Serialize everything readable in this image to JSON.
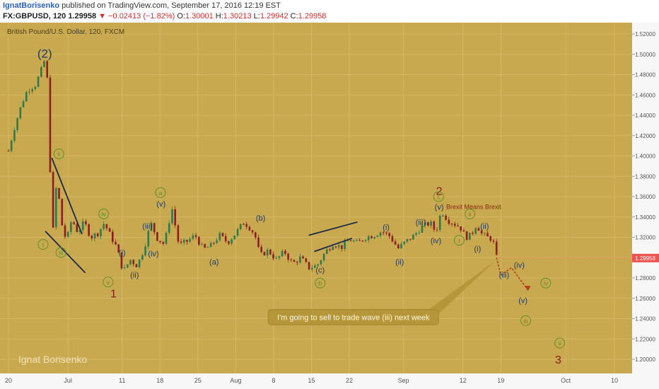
{
  "header": {
    "author": "IgnatBorisenko",
    "published_text": "published on TradingView.com, September 17, 2016 12:19 EST",
    "symbol": "FX:GBPUSD, 120",
    "last_price": "1.29958",
    "change": "−0.02413 (−1.82%)",
    "o_label": "O:",
    "o_value": "1.30001",
    "h_label": "H:",
    "h_value": "1.30213",
    "l_label": "L:",
    "l_value": "1.29942",
    "c_label": "C:",
    "c_value": "1.29958"
  },
  "chart_data": {
    "type": "candlestick",
    "instrument_title": "British Pound/U.S. Dollar, 120, FXCM",
    "watermark": "Ignat Borisenko",
    "ylim": [
      1.19,
      1.53
    ],
    "y_ticks": [
      1.52,
      1.5,
      1.48,
      1.46,
      1.44,
      1.42,
      1.4,
      1.38,
      1.36,
      1.34,
      1.32,
      1.3,
      1.28,
      1.26,
      1.24,
      1.22,
      1.2
    ],
    "y_tick_labels": [
      "1.52000",
      "1.50000",
      "1.48000",
      "1.46000",
      "1.44000",
      "1.42000",
      "1.40000",
      "1.38000",
      "1.36000",
      "1.34000",
      "1.32000",
      "1.30000",
      "1.28000",
      "1.26000",
      "1.24000",
      "1.22000",
      "1.20000"
    ],
    "x_ticks": [
      {
        "label": "20",
        "day": 0
      },
      {
        "label": "Jul",
        "day": 11
      },
      {
        "label": "11",
        "day": 21
      },
      {
        "label": "18",
        "day": 28
      },
      {
        "label": "25",
        "day": 35
      },
      {
        "label": "Aug",
        "day": 42
      },
      {
        "label": "8",
        "day": 49
      },
      {
        "label": "15",
        "day": 56
      },
      {
        "label": "22",
        "day": 63
      },
      {
        "label": "Sep",
        "day": 73
      },
      {
        "label": "12",
        "day": 84
      },
      {
        "label": "19",
        "day": 91
      },
      {
        "label": "Oct",
        "day": 103
      },
      {
        "label": "10",
        "day": 112
      }
    ],
    "current_price": 1.29958,
    "current_price_label": "1.29958",
    "path_points": [
      [
        0,
        1.405
      ],
      [
        1.2,
        1.43
      ],
      [
        2.5,
        1.452
      ],
      [
        3.5,
        1.465
      ],
      [
        5.0,
        1.47
      ],
      [
        6.3,
        1.488
      ],
      [
        6.9,
        1.498
      ],
      [
        7.3,
        1.462
      ],
      [
        7.6,
        1.405
      ],
      [
        7.9,
        1.35
      ],
      [
        8.2,
        1.322
      ],
      [
        8.6,
        1.365
      ],
      [
        9.1,
        1.372
      ],
      [
        9.7,
        1.336
      ],
      [
        10.7,
        1.316
      ],
      [
        11.7,
        1.338
      ],
      [
        12.8,
        1.325
      ],
      [
        14.0,
        1.335
      ],
      [
        15.2,
        1.32
      ],
      [
        16.5,
        1.324
      ],
      [
        17.7,
        1.334
      ],
      [
        18.8,
        1.322
      ],
      [
        20.0,
        1.31
      ],
      [
        21.2,
        1.286
      ],
      [
        22.5,
        1.298
      ],
      [
        23.8,
        1.292
      ],
      [
        25.0,
        1.308
      ],
      [
        26.3,
        1.334
      ],
      [
        27.5,
        1.319
      ],
      [
        28.8,
        1.313
      ],
      [
        30.2,
        1.349
      ],
      [
        31.5,
        1.312
      ],
      [
        33.0,
        1.316
      ],
      [
        34.5,
        1.322
      ],
      [
        36.0,
        1.308
      ],
      [
        37.5,
        1.312
      ],
      [
        39.0,
        1.322
      ],
      [
        40.5,
        1.315
      ],
      [
        42.0,
        1.324
      ],
      [
        43.5,
        1.335
      ],
      [
        44.5,
        1.33
      ],
      [
        45.5,
        1.323
      ],
      [
        46.5,
        1.302
      ],
      [
        48.0,
        1.307
      ],
      [
        49.5,
        1.298
      ],
      [
        51.0,
        1.306
      ],
      [
        52.5,
        1.294
      ],
      [
        54.0,
        1.3
      ],
      [
        55.5,
        1.29
      ],
      [
        57.0,
        1.292
      ],
      [
        58.5,
        1.305
      ],
      [
        60.0,
        1.314
      ],
      [
        61.5,
        1.31
      ],
      [
        63.0,
        1.318
      ],
      [
        64.5,
        1.314
      ],
      [
        66.0,
        1.32
      ],
      [
        67.5,
        1.322
      ],
      [
        69.0,
        1.326
      ],
      [
        70.5,
        1.321
      ],
      [
        72.0,
        1.309
      ],
      [
        73.5,
        1.316
      ],
      [
        75.0,
        1.322
      ],
      [
        76.5,
        1.331
      ],
      [
        78.0,
        1.334
      ],
      [
        79.0,
        1.325
      ],
      [
        80.0,
        1.346
      ],
      [
        81.2,
        1.337
      ],
      [
        82.5,
        1.333
      ],
      [
        83.5,
        1.33
      ],
      [
        84.5,
        1.32
      ],
      [
        85.5,
        1.322
      ],
      [
        86.5,
        1.333
      ],
      [
        87.5,
        1.323
      ],
      [
        88.5,
        1.32
      ],
      [
        89.5,
        1.318
      ],
      [
        90.2,
        1.3
      ]
    ],
    "forecast_path": [
      [
        90.2,
        1.3
      ],
      [
        91.0,
        1.283
      ],
      [
        93.0,
        1.29
      ],
      [
        96.0,
        1.268
      ]
    ],
    "trendlines": [
      {
        "name": "wedge-upper",
        "from": [
          8.0,
          1.398
        ],
        "to": [
          13.6,
          1.323
        ]
      },
      {
        "name": "wedge-lower",
        "from": [
          6.8,
          1.326
        ],
        "to": [
          14.2,
          1.285
        ]
      },
      {
        "name": "flag-upper",
        "from": [
          55.5,
          1.322
        ],
        "to": [
          64.5,
          1.335
        ]
      },
      {
        "name": "flag-lower",
        "from": [
          56.5,
          1.306
        ],
        "to": [
          63.5,
          1.319
        ]
      }
    ],
    "wave_labels": [
      {
        "text": "(2)",
        "x": 6.7,
        "y": 1.501,
        "style": "primary-blue"
      },
      {
        "text": "1",
        "x": 19.4,
        "y": 1.265,
        "style": "major-red"
      },
      {
        "text": "2",
        "x": 79.6,
        "y": 1.366,
        "style": "major-red"
      },
      {
        "text": "3",
        "x": 101.6,
        "y": 1.2,
        "style": "major-red"
      },
      {
        "text": "ii",
        "x": 9.3,
        "y": 1.402,
        "style": "circled-green"
      },
      {
        "text": "i",
        "x": 6.4,
        "y": 1.313,
        "style": "circled-green"
      },
      {
        "text": "iii",
        "x": 9.7,
        "y": 1.305,
        "style": "circled-green"
      },
      {
        "text": "iv",
        "x": 17.6,
        "y": 1.343,
        "style": "circled-green"
      },
      {
        "text": "v",
        "x": 18.4,
        "y": 1.276,
        "style": "circled-green"
      },
      {
        "text": "a",
        "x": 28.1,
        "y": 1.364,
        "style": "circled-green"
      },
      {
        "text": "b",
        "x": 57.6,
        "y": 1.275,
        "style": "circled-green"
      },
      {
        "text": "c",
        "x": 79.5,
        "y": 1.36,
        "style": "circled-green"
      },
      {
        "text": "ii",
        "x": 85.3,
        "y": 1.343,
        "style": "circled-green"
      },
      {
        "text": "i",
        "x": 83.3,
        "y": 1.317,
        "style": "circled-green"
      },
      {
        "text": "iii",
        "x": 95.6,
        "y": 1.238,
        "style": "circled-green"
      },
      {
        "text": "iv",
        "x": 99.3,
        "y": 1.275,
        "style": "circled-green"
      },
      {
        "text": "v",
        "x": 101.9,
        "y": 1.216,
        "style": "circled-green"
      },
      {
        "text": "(i)",
        "x": 21.0,
        "y": 1.305,
        "style": "paren-blue"
      },
      {
        "text": "(ii)",
        "x": 23.3,
        "y": 1.283,
        "style": "paren-blue"
      },
      {
        "text": "(iii)",
        "x": 25.7,
        "y": 1.331,
        "style": "paren-blue"
      },
      {
        "text": "(iv)",
        "x": 26.8,
        "y": 1.304,
        "style": "paren-blue"
      },
      {
        "text": "(v)",
        "x": 28.2,
        "y": 1.353,
        "style": "paren-blue"
      },
      {
        "text": "(a)",
        "x": 38.0,
        "y": 1.296,
        "style": "paren-blue"
      },
      {
        "text": "(b)",
        "x": 46.6,
        "y": 1.339,
        "style": "paren-blue"
      },
      {
        "text": "(c)",
        "x": 57.6,
        "y": 1.288,
        "style": "paren-blue"
      },
      {
        "text": "(i)",
        "x": 69.8,
        "y": 1.33,
        "style": "paren-blue"
      },
      {
        "text": "(ii)",
        "x": 72.3,
        "y": 1.296,
        "style": "paren-blue"
      },
      {
        "text": "(iii)",
        "x": 76.2,
        "y": 1.335,
        "style": "paren-blue"
      },
      {
        "text": "(iv)",
        "x": 79.0,
        "y": 1.317,
        "style": "paren-blue"
      },
      {
        "text": "(v)",
        "x": 79.6,
        "y": 1.35,
        "style": "paren-blue"
      },
      {
        "text": "(ii)",
        "x": 88.0,
        "y": 1.331,
        "style": "paren-blue"
      },
      {
        "text": "(i)",
        "x": 86.7,
        "y": 1.309,
        "style": "paren-blue"
      },
      {
        "text": "(iii)",
        "x": 91.6,
        "y": 1.283,
        "style": "paren-blue"
      },
      {
        "text": "(iv)",
        "x": 94.4,
        "y": 1.293,
        "style": "paren-blue"
      },
      {
        "text": "(v)",
        "x": 95.1,
        "y": 1.258,
        "style": "paren-blue"
      }
    ],
    "annotations": [
      {
        "text": "Brexit Means Brexit",
        "x": 86.0,
        "y": 1.35,
        "style": "note-red"
      }
    ],
    "callout": {
      "text": "I'm going to sell to trade wave (iii) next week",
      "box_from": [
        48.0,
        1.249
      ],
      "box_to": [
        79.5,
        1.234
      ],
      "pointer_to": [
        90.0,
        1.297
      ]
    },
    "colors": {
      "background": "#c9a94f",
      "grid": "#d4b866",
      "axis_panel": "#f7f7f7",
      "candle_up": "#2f7a4b",
      "candle_down": "#8a1f1f",
      "wave_blue": "#1f3b63",
      "wave_red": "#8b1a1a",
      "circled_green": "#5e8f2a",
      "trendline": "#1b2a48",
      "current_price_bg": "#ef5350",
      "callout_bg": "#b59638"
    }
  }
}
